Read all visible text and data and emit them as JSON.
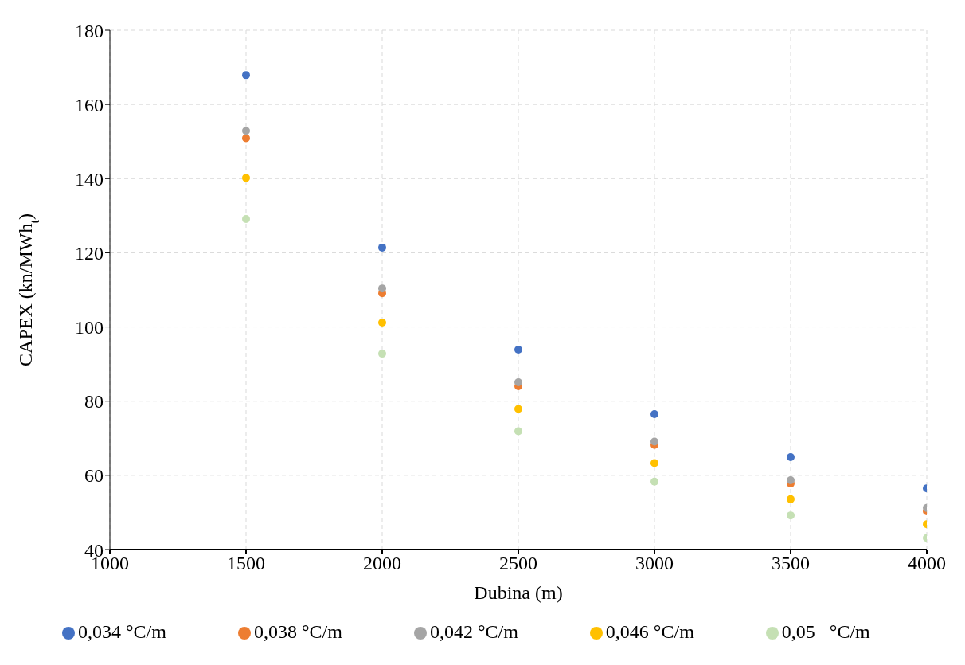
{
  "chart_data": {
    "type": "scatter",
    "xlabel": "Dubina (m)",
    "ylabel": "CAPEX (kn/MWh$_{t}$)",
    "x": [
      1500,
      2000,
      2500,
      3000,
      3500,
      4000
    ],
    "series": [
      {
        "name": "0,034 °C/m",
        "color": "#4472c4",
        "values": [
          167.9,
          121.4,
          93.9,
          76.5,
          64.9,
          56.5
        ]
      },
      {
        "name": "0,038 °C/m",
        "color": "#ed7d31",
        "values": [
          150.9,
          109.1,
          84.0,
          68.2,
          57.8,
          50.3
        ]
      },
      {
        "name": "0,042 °C/m",
        "color": "#a5a5a5",
        "values": [
          152.9,
          110.4,
          85.1,
          69.1,
          58.7,
          51.2
        ]
      },
      {
        "name": "0,046 °C/m",
        "color": "#ffc000",
        "values": [
          140.2,
          101.2,
          77.9,
          63.3,
          53.6,
          46.8
        ]
      },
      {
        "name": "0,05   °C/m",
        "color": "#c5e0b4",
        "values": [
          129.1,
          92.8,
          71.9,
          58.3,
          49.2,
          43.1
        ]
      }
    ],
    "xlim": [
      1000,
      4000
    ],
    "xticks": [
      1000,
      1500,
      2000,
      2500,
      3000,
      3500,
      4000
    ],
    "ylim": [
      40,
      180
    ],
    "yticks": [
      40,
      60,
      80,
      100,
      120,
      140,
      160,
      180
    ],
    "grid": true,
    "legend": "bottom",
    "marker": "circle"
  }
}
